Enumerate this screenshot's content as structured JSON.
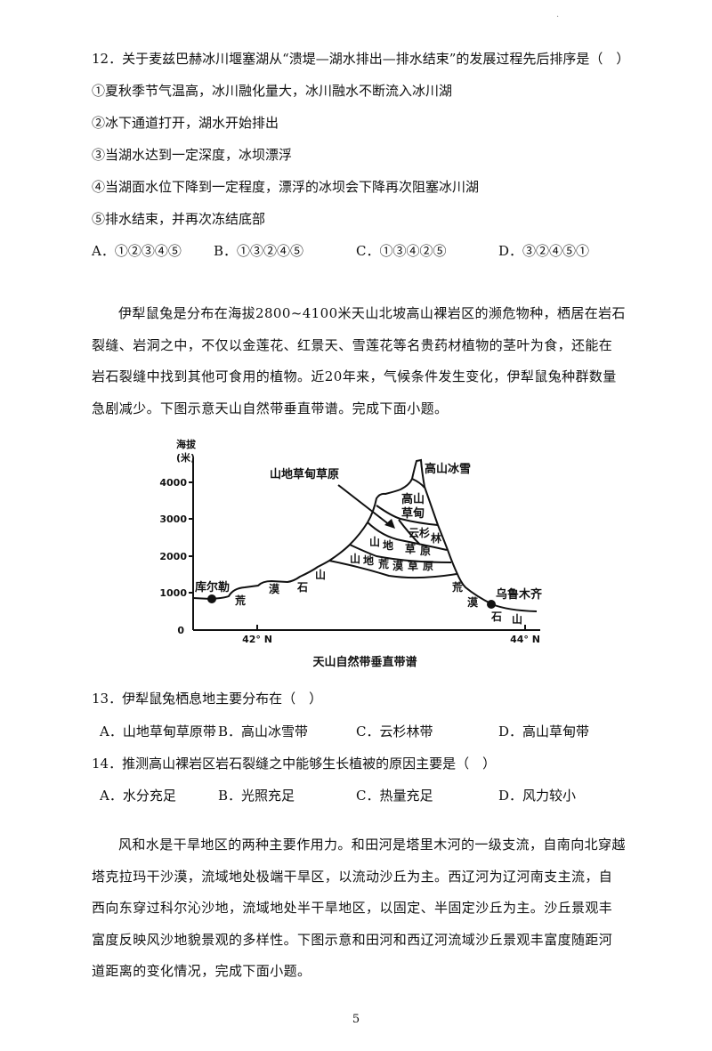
{
  "q12": {
    "stem": "12．关于麦兹巴赫冰川堰塞湖从“溃堤—湖水排出—排水结束”的发展过程先后排序是（　）",
    "items": [
      "①夏秋季节气温高，冰川融化量大，冰川融水不断流入冰川湖",
      "②冰下通道打开，湖水开始排出",
      "③当湖水达到一定深度，冰坝漂浮",
      "④当湖面水位下降到一定程度，漂浮的冰坝会下降再次阻塞冰川湖",
      "⑤排水结束，并再次冻结底部"
    ],
    "options": [
      "A．①②③④⑤",
      "B．①③②④⑤",
      "C．①③④②⑤",
      "D．③②④⑤①"
    ]
  },
  "passage1": "伊犁鼠兔是分布在海拔2800~4100米天山北坡高山裸岩区的濒危物种，栖居在岩石裂缝、岩洞之中，不仅以金莲花、红景天、雪莲花等名贵药材植物的茎叶为食，还能在岩石裂缝中找到其他可食用的植物。近20年来，气候条件发生变化，伊犁鼠兔种群数量急剧减少。下图示意天山自然带垂直带谱。完成下面小题。",
  "figure": {
    "y_axis_label": [
      "海拔",
      "(米)"
    ],
    "y_ticks": [
      "0",
      "1000",
      "2000",
      "3000",
      "4000"
    ],
    "x_ticks": [
      "42° N",
      "44° N"
    ],
    "labels": {
      "meadow_steppe": "山地草甸草原",
      "ice_snow": "高山冰雪",
      "alpine_meadow": [
        "高山",
        "草甸"
      ],
      "spruce": [
        "云杉",
        "林"
      ],
      "steppe": [
        "山",
        "地",
        "草",
        "原"
      ],
      "desert_steppe": [
        "山",
        "地",
        "荒",
        "漠",
        "草",
        "原"
      ],
      "left_desert": [
        "荒",
        "漠",
        "石",
        "山"
      ],
      "right_desert": [
        "荒",
        "漠",
        "石",
        "山"
      ],
      "korla": "库尔勒",
      "urumqi": "乌鲁木齐"
    },
    "caption": "天山自然带垂直带谱"
  },
  "q13": {
    "stem": "13．伊犁鼠兔栖息地主要分布在（　）",
    "options": [
      "A．山地草甸草原带",
      "B．高山冰雪带",
      "C．云杉林带",
      "D．高山草甸带"
    ]
  },
  "q14": {
    "stem": "14．推测高山裸岩区岩石裂缝之中能够生长植被的原因主要是（　）",
    "options": [
      "A．水分充足",
      "B．光照充足",
      "C．热量充足",
      "D．风力较小"
    ]
  },
  "passage2": "风和水是干旱地区的两种主要作用力。和田河是塔里木河的一级支流，自南向北穿越塔克拉玛干沙漠，流域地处极端干旱区，以流动沙丘为主。西辽河为辽河南支主流，自西向东穿过科尔沁沙地，流域地处半干旱地区，以固定、半固定沙丘为主。沙丘景观丰富度反映风沙地貌景观的多样性。下图示意和田河和西辽河流域沙丘景观丰富度随距河道距离的变化情况，完成下面小题。",
  "page_number": "5",
  "corner_mark": "·"
}
